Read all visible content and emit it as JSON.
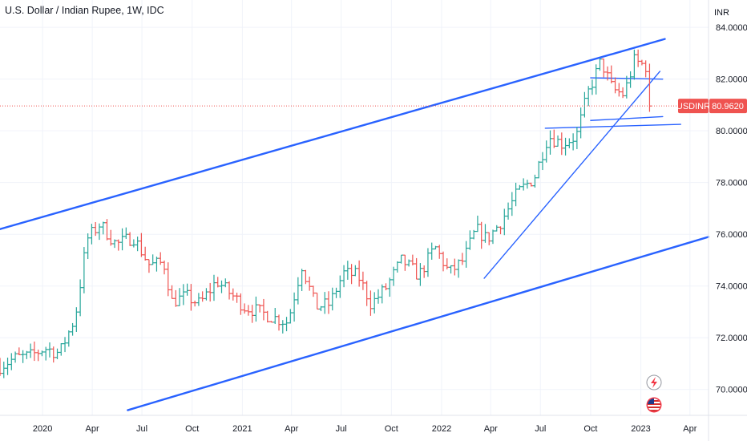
{
  "chart_data": {
    "type": "candlestick",
    "title": "U.S. Dollar / Indian Rupee, 1W, IDC",
    "currency_label": "INR",
    "symbol": "USDINR",
    "last_price": 80.962,
    "last_price_label": "80.9620",
    "ylim": [
      69.0,
      84.5
    ],
    "y_ticks": [
      {
        "value": 70,
        "label": "70.0000"
      },
      {
        "value": 72,
        "label": "72.0000"
      },
      {
        "value": 74,
        "label": "74.0000"
      },
      {
        "value": 76,
        "label": "76.0000"
      },
      {
        "value": 78,
        "label": "78.0000"
      },
      {
        "value": 80,
        "label": "80.0000"
      },
      {
        "value": 82,
        "label": "82.0000"
      },
      {
        "value": 84,
        "label": "84.0000"
      }
    ],
    "x_range": [
      "2019-10-15",
      "2023-05-05"
    ],
    "x_ticks": [
      {
        "date": "2020-01-01",
        "label": "2020"
      },
      {
        "date": "2020-04-01",
        "label": "Apr"
      },
      {
        "date": "2020-07-01",
        "label": "Jul"
      },
      {
        "date": "2020-10-01",
        "label": "Oct"
      },
      {
        "date": "2021-01-01",
        "label": "2021"
      },
      {
        "date": "2021-04-01",
        "label": "Apr"
      },
      {
        "date": "2021-07-01",
        "label": "Jul"
      },
      {
        "date": "2021-10-01",
        "label": "Oct"
      },
      {
        "date": "2022-01-01",
        "label": "2022"
      },
      {
        "date": "2022-04-01",
        "label": "Apr"
      },
      {
        "date": "2022-07-01",
        "label": "Jul"
      },
      {
        "date": "2022-10-01",
        "label": "Oct"
      },
      {
        "date": "2023-01-01",
        "label": "2023"
      },
      {
        "date": "2023-04-01",
        "label": "Apr"
      }
    ],
    "grid": true,
    "colors": {
      "up": "#26a69a",
      "down": "#ef5350",
      "drawing": "#2962ff",
      "price_line": "#ef5350",
      "text": "#131722",
      "grid": "#f0f3fa"
    },
    "price_path": [
      [
        "2019-10-15",
        70.9
      ],
      [
        "2019-11-10",
        71.2
      ],
      [
        "2019-12-10",
        71.3
      ],
      [
        "2020-01-05",
        71.6
      ],
      [
        "2020-02-01",
        71.4
      ],
      [
        "2020-03-01",
        72.8
      ],
      [
        "2020-03-22",
        75.8
      ],
      [
        "2020-04-15",
        76.4
      ],
      [
        "2020-05-15",
        75.6
      ],
      [
        "2020-06-15",
        75.9
      ],
      [
        "2020-07-15",
        74.8
      ],
      [
        "2020-08-10",
        74.9
      ],
      [
        "2020-08-25",
        73.4
      ],
      [
        "2020-09-20",
        73.6
      ],
      [
        "2020-10-15",
        73.3
      ],
      [
        "2020-11-15",
        74.2
      ],
      [
        "2020-12-10",
        73.7
      ],
      [
        "2021-01-05",
        73.2
      ],
      [
        "2021-02-01",
        73.0
      ],
      [
        "2021-02-25",
        72.8
      ],
      [
        "2021-03-25",
        72.6
      ],
      [
        "2021-04-20",
        74.8
      ],
      [
        "2021-05-15",
        73.2
      ],
      [
        "2021-06-10",
        73.3
      ],
      [
        "2021-07-05",
        74.5
      ],
      [
        "2021-08-01",
        74.4
      ],
      [
        "2021-08-25",
        73.3
      ],
      [
        "2021-09-20",
        73.9
      ],
      [
        "2021-10-20",
        75.0
      ],
      [
        "2021-11-20",
        74.4
      ],
      [
        "2021-12-20",
        75.5
      ],
      [
        "2022-01-15",
        74.5
      ],
      [
        "2022-02-10",
        75.0
      ],
      [
        "2022-03-05",
        76.2
      ],
      [
        "2022-03-25",
        75.8
      ],
      [
        "2022-04-20",
        76.5
      ],
      [
        "2022-05-20",
        77.6
      ],
      [
        "2022-06-20",
        78.2
      ],
      [
        "2022-07-15",
        79.8
      ],
      [
        "2022-08-10",
        79.5
      ],
      [
        "2022-09-05",
        79.8
      ],
      [
        "2022-09-25",
        81.4
      ],
      [
        "2022-10-20",
        82.7
      ],
      [
        "2022-11-10",
        81.6
      ],
      [
        "2022-12-01",
        81.4
      ],
      [
        "2022-12-20",
        82.7
      ],
      [
        "2023-01-10",
        82.5
      ],
      [
        "2023-01-20",
        80.96
      ]
    ],
    "trendlines": [
      {
        "name": "upper-channel",
        "from": [
          "2019-10-15",
          76.2
        ],
        "to": [
          "2023-02-14",
          83.55
        ],
        "width": 2.4
      },
      {
        "name": "lower-channel",
        "from": [
          "2020-06-05",
          69.2
        ],
        "to": [
          "2023-05-05",
          75.9
        ],
        "width": 2.4
      },
      {
        "name": "rising-support",
        "from": [
          "2022-03-20",
          74.3
        ],
        "to": [
          "2023-02-05",
          82.3
        ],
        "width": 1.4
      },
      {
        "name": "resistance-82",
        "from": [
          "2022-10-01",
          82.05
        ],
        "to": [
          "2023-02-10",
          82.0
        ],
        "width": 1.4
      },
      {
        "name": "support-80-5",
        "from": [
          "2022-10-01",
          80.4
        ],
        "to": [
          "2023-02-10",
          80.55
        ],
        "width": 1.4
      },
      {
        "name": "support-80",
        "from": [
          "2022-07-10",
          80.1
        ],
        "to": [
          "2023-03-15",
          80.25
        ],
        "width": 1.4
      }
    ]
  }
}
